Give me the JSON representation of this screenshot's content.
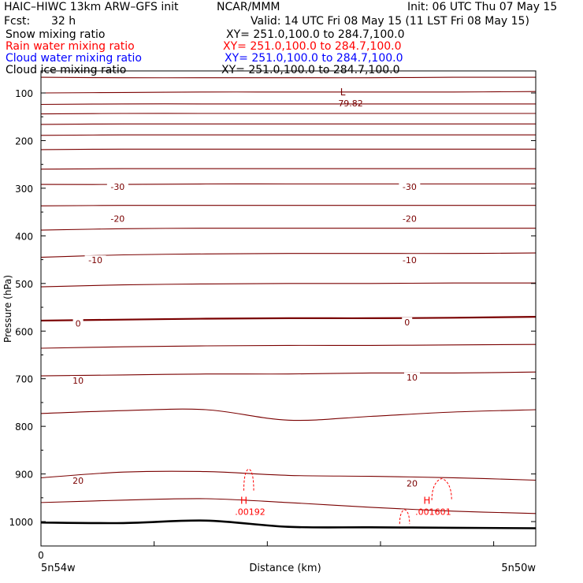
{
  "header": {
    "title": "HAIC–HIWC 13km ARW–GFS init",
    "org": "NCAR/MMM",
    "init": "Init: 06 UTC Thu 07 May 15",
    "fcst_label": "Fcst:",
    "fcst_value": "32 h",
    "valid": "Valid: 14 UTC Fri 08 May 15 (11 LST Fri 08 May 15)"
  },
  "fields": [
    {
      "name": "Snow mixing ratio",
      "xy": "XY= 251.0,100.0 to 284.7,100.0",
      "color": "#000000"
    },
    {
      "name": "Rain water mixing ratio",
      "xy": "XY= 251.0,100.0 to 284.7,100.0",
      "color": "#ff0000"
    },
    {
      "name": "Cloud water mixing ratio",
      "xy": "XY= 251.0,100.0 to 284.7,100.0",
      "color": "#0000ff"
    },
    {
      "name": "Cloud ice mixing ratio",
      "xy": "XY= 251.0,100.0 to 284.7,100.0",
      "color": "#000000"
    }
  ],
  "axes": {
    "ylabel": "Pressure (hPa)",
    "xlabel": "Distance (km)",
    "x_origin": "0",
    "x_left": "5n54w",
    "x_right": "5n50w"
  },
  "colors": {
    "temperature": "#7a0000",
    "rain": "#ff0000",
    "terrain": "#000000"
  },
  "chart_data": {
    "type": "line",
    "x_domain": [
      0,
      1
    ],
    "ylim": [
      1040,
      50
    ],
    "yticks": [
      100,
      200,
      300,
      400,
      500,
      600,
      700,
      800,
      900,
      1000
    ],
    "temperature_contours": [
      {
        "y": [
          67,
          68,
          68,
          68,
          68,
          67,
          67
        ]
      },
      {
        "y": [
          100,
          99,
          98,
          98,
          98,
          98,
          97
        ]
      },
      {
        "y": [
          124,
          123,
          123,
          123,
          123,
          123,
          123
        ]
      },
      {
        "y": [
          144,
          143,
          143,
          143,
          143,
          143,
          143
        ]
      },
      {
        "y": [
          166,
          165,
          165,
          165,
          165,
          165,
          165
        ]
      },
      {
        "y": [
          189,
          188,
          188,
          188,
          188,
          188,
          188
        ]
      },
      {
        "y": [
          219,
          218,
          218,
          218,
          218,
          218,
          218
        ]
      },
      {
        "y": [
          260,
          259,
          259,
          259,
          259,
          259,
          259
        ]
      },
      {
        "y": [
          292,
          292,
          291,
          291,
          291,
          291,
          291
        ]
      },
      {
        "y": [
          337,
          336,
          336,
          336,
          336,
          336,
          336
        ]
      },
      {
        "y": [
          388,
          385,
          384,
          384,
          384,
          384,
          384
        ]
      },
      {
        "y": [
          445,
          440,
          438,
          437,
          437,
          437,
          436
        ]
      },
      {
        "y": [
          507,
          503,
          501,
          500,
          500,
          499,
          499
        ]
      },
      {
        "y": [
          578,
          576,
          574,
          573,
          573,
          572,
          570
        ]
      },
      {
        "y": [
          636,
          633,
          631,
          630,
          630,
          629,
          628
        ]
      },
      {
        "y": [
          694,
          692,
          690,
          690,
          688,
          688,
          686
        ]
      },
      {
        "y": [
          773,
          767,
          765,
          787,
          779,
          770,
          765
        ]
      },
      {
        "y": [
          908,
          896,
          895,
          903,
          905,
          908,
          913
        ]
      },
      {
        "y": [
          960,
          955,
          952,
          960,
          970,
          978,
          983
        ]
      }
    ],
    "contour_labels": [
      {
        "text": "-30",
        "x": 0.155,
        "p": 297
      },
      {
        "text": "-30",
        "x": 0.745,
        "p": 297
      },
      {
        "text": "-20",
        "x": 0.155,
        "p": 364
      },
      {
        "text": "-20",
        "x": 0.745,
        "p": 364
      },
      {
        "text": "-10",
        "x": 0.11,
        "p": 451
      },
      {
        "text": "-10",
        "x": 0.745,
        "p": 451
      },
      {
        "text": "0",
        "x": 0.075,
        "p": 584
      },
      {
        "text": "0",
        "x": 0.74,
        "p": 581
      },
      {
        "text": "10",
        "x": 0.075,
        "p": 704
      },
      {
        "text": "10",
        "x": 0.75,
        "p": 697
      },
      {
        "text": "20",
        "x": 0.075,
        "p": 914
      },
      {
        "text": "20",
        "x": 0.75,
        "p": 920
      }
    ],
    "extrema": [
      {
        "kind": "L",
        "value": "-79.82",
        "x": 0.61,
        "p": 110
      },
      {
        "kind": "H",
        "value": ".00192",
        "x": 0.41,
        "p": 968
      },
      {
        "kind": "H",
        "value": ".001601",
        "x": 0.78,
        "p": 968
      }
    ],
    "rain_blobs": [
      {
        "x": [
          0.41,
          0.43
        ],
        "p": [
          935,
          890
        ]
      },
      {
        "x": [
          0.725,
          0.745
        ],
        "p": [
          1005,
          975
        ]
      },
      {
        "x": [
          0.79,
          0.83
        ],
        "p": [
          955,
          910
        ]
      }
    ],
    "terrain_pressure": [
      1002,
      1003,
      998,
      1011,
      1012,
      1013,
      1014
    ]
  }
}
